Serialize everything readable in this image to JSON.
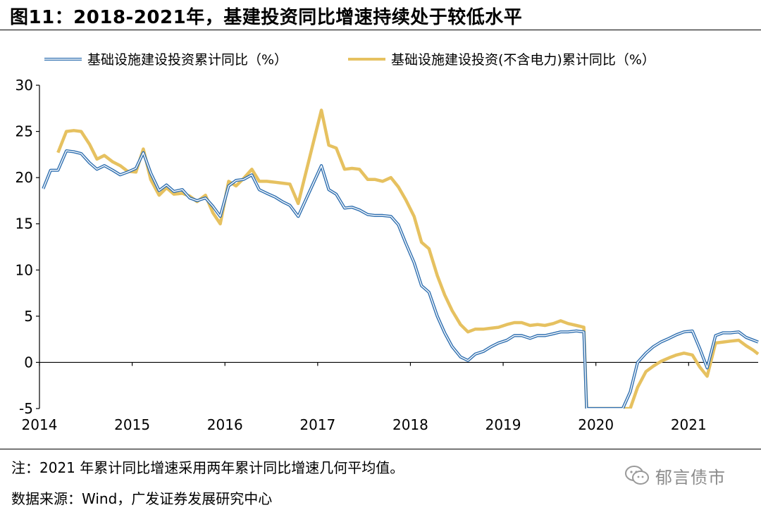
{
  "figure": {
    "title": "图11：2018-2021年，基建投资同比增速持续处于较低水平",
    "note": "注：2021 年累计同比增速采用两年累计同比增速几何平均值。",
    "source": "数据来源：Wind，广发证券发展研究中心",
    "watermark": "郁言债市"
  },
  "chart_data": {
    "type": "line",
    "title": "",
    "xlabel": "",
    "ylabel": "",
    "ylim": [
      -5,
      30
    ],
    "yticks": [
      -5,
      0,
      5,
      10,
      15,
      20,
      25,
      30
    ],
    "xlim": [
      2014,
      2021.75
    ],
    "xticks": [
      "2014",
      "2015",
      "2016",
      "2017",
      "2018",
      "2019",
      "2020",
      "2021"
    ],
    "grid": false,
    "legend_position": "top",
    "series": [
      {
        "name": "基础设施建设投资累计同比（%）",
        "color": "#2f6fb0",
        "points": [
          [
            2014.04,
            18.8
          ],
          [
            2014.12,
            20.8
          ],
          [
            2014.2,
            20.8
          ],
          [
            2014.29,
            22.9
          ],
          [
            2014.37,
            22.8
          ],
          [
            2014.45,
            22.6
          ],
          [
            2014.54,
            21.6
          ],
          [
            2014.62,
            20.9
          ],
          [
            2014.7,
            21.3
          ],
          [
            2014.79,
            20.8
          ],
          [
            2014.87,
            20.3
          ],
          [
            2014.95,
            20.6
          ],
          [
            2015.04,
            21.0
          ],
          [
            2015.12,
            22.7
          ],
          [
            2015.2,
            20.5
          ],
          [
            2015.29,
            18.6
          ],
          [
            2015.37,
            19.2
          ],
          [
            2015.45,
            18.5
          ],
          [
            2015.54,
            18.7
          ],
          [
            2015.62,
            17.8
          ],
          [
            2015.7,
            17.5
          ],
          [
            2015.79,
            17.8
          ],
          [
            2015.87,
            16.9
          ],
          [
            2015.95,
            15.8
          ],
          [
            2016.04,
            19.1
          ],
          [
            2016.12,
            19.7
          ],
          [
            2016.2,
            19.8
          ],
          [
            2016.29,
            20.3
          ],
          [
            2016.37,
            18.7
          ],
          [
            2016.45,
            18.3
          ],
          [
            2016.54,
            17.9
          ],
          [
            2016.62,
            17.4
          ],
          [
            2016.7,
            17.0
          ],
          [
            2016.79,
            15.8
          ],
          [
            2017.04,
            21.3
          ],
          [
            2017.12,
            18.7
          ],
          [
            2017.2,
            18.2
          ],
          [
            2017.29,
            16.7
          ],
          [
            2017.37,
            16.8
          ],
          [
            2017.45,
            16.5
          ],
          [
            2017.54,
            16.0
          ],
          [
            2017.62,
            15.9
          ],
          [
            2017.7,
            15.9
          ],
          [
            2017.79,
            15.8
          ],
          [
            2017.87,
            14.9
          ],
          [
            2017.95,
            12.9
          ],
          [
            2018.04,
            10.8
          ],
          [
            2018.12,
            8.3
          ],
          [
            2018.2,
            7.6
          ],
          [
            2018.29,
            5.0
          ],
          [
            2018.37,
            3.2
          ],
          [
            2018.45,
            1.7
          ],
          [
            2018.54,
            0.6
          ],
          [
            2018.62,
            0.2
          ],
          [
            2018.7,
            0.9
          ],
          [
            2018.79,
            1.2
          ],
          [
            2018.87,
            1.7
          ],
          [
            2018.95,
            2.1
          ],
          [
            2019.04,
            2.4
          ],
          [
            2019.12,
            2.9
          ],
          [
            2019.2,
            2.9
          ],
          [
            2019.29,
            2.6
          ],
          [
            2019.37,
            2.9
          ],
          [
            2019.45,
            2.9
          ],
          [
            2019.54,
            3.1
          ],
          [
            2019.62,
            3.3
          ],
          [
            2019.7,
            3.3
          ],
          [
            2019.79,
            3.4
          ],
          [
            2019.87,
            3.3
          ],
          [
            2019.9,
            -5
          ],
          [
            2020.29,
            -5
          ],
          [
            2020.37,
            -3.2
          ],
          [
            2020.45,
            0.0
          ],
          [
            2020.54,
            1.0
          ],
          [
            2020.62,
            1.7
          ],
          [
            2020.7,
            2.2
          ],
          [
            2020.79,
            2.6
          ],
          [
            2020.87,
            3.0
          ],
          [
            2020.95,
            3.3
          ],
          [
            2021.04,
            3.4
          ],
          [
            2021.12,
            1.5
          ],
          [
            2021.2,
            -0.6
          ],
          [
            2021.29,
            2.9
          ],
          [
            2021.37,
            3.2
          ],
          [
            2021.45,
            3.2
          ],
          [
            2021.54,
            3.3
          ],
          [
            2021.62,
            2.7
          ],
          [
            2021.7,
            2.4
          ],
          [
            2021.75,
            2.2
          ]
        ]
      },
      {
        "name": "基础设施建设投资(不含电力)累计同比（%）",
        "color": "#e6c160",
        "points": [
          [
            2014.2,
            22.7
          ],
          [
            2014.29,
            25.0
          ],
          [
            2014.37,
            25.1
          ],
          [
            2014.45,
            25.0
          ],
          [
            2014.54,
            23.6
          ],
          [
            2014.62,
            22.0
          ],
          [
            2014.7,
            22.4
          ],
          [
            2014.79,
            21.7
          ],
          [
            2014.87,
            21.3
          ],
          [
            2014.95,
            20.7
          ],
          [
            2015.04,
            20.6
          ],
          [
            2015.12,
            23.1
          ],
          [
            2015.2,
            19.8
          ],
          [
            2015.29,
            18.1
          ],
          [
            2015.37,
            18.9
          ],
          [
            2015.45,
            18.2
          ],
          [
            2015.54,
            18.3
          ],
          [
            2015.62,
            18.0
          ],
          [
            2015.7,
            17.4
          ],
          [
            2015.79,
            18.1
          ],
          [
            2015.87,
            16.2
          ],
          [
            2015.95,
            15.0
          ],
          [
            2016.04,
            19.6
          ],
          [
            2016.12,
            19.1
          ],
          [
            2016.2,
            19.9
          ],
          [
            2016.29,
            20.9
          ],
          [
            2016.37,
            19.6
          ],
          [
            2016.45,
            19.6
          ],
          [
            2016.54,
            19.5
          ],
          [
            2016.62,
            19.4
          ],
          [
            2016.7,
            19.3
          ],
          [
            2016.79,
            17.2
          ],
          [
            2017.04,
            27.3
          ],
          [
            2017.12,
            23.5
          ],
          [
            2017.2,
            23.2
          ],
          [
            2017.29,
            20.9
          ],
          [
            2017.37,
            21.0
          ],
          [
            2017.45,
            20.9
          ],
          [
            2017.54,
            19.8
          ],
          [
            2017.62,
            19.8
          ],
          [
            2017.7,
            19.6
          ],
          [
            2017.79,
            20.0
          ],
          [
            2017.87,
            19.0
          ],
          [
            2017.95,
            17.6
          ],
          [
            2018.04,
            15.8
          ],
          [
            2018.12,
            13.0
          ],
          [
            2018.2,
            12.3
          ],
          [
            2018.29,
            9.4
          ],
          [
            2018.37,
            7.3
          ],
          [
            2018.45,
            5.6
          ],
          [
            2018.54,
            4.1
          ],
          [
            2018.62,
            3.3
          ],
          [
            2018.7,
            3.6
          ],
          [
            2018.79,
            3.6
          ],
          [
            2018.87,
            3.7
          ],
          [
            2018.95,
            3.8
          ],
          [
            2019.04,
            4.1
          ],
          [
            2019.12,
            4.3
          ],
          [
            2019.2,
            4.3
          ],
          [
            2019.29,
            4.0
          ],
          [
            2019.37,
            4.1
          ],
          [
            2019.45,
            4.0
          ],
          [
            2019.54,
            4.2
          ],
          [
            2019.62,
            4.5
          ],
          [
            2019.7,
            4.2
          ],
          [
            2019.79,
            4.0
          ],
          [
            2019.87,
            3.8
          ],
          [
            2019.9,
            -5
          ],
          [
            2020.37,
            -5
          ],
          [
            2020.45,
            -2.7
          ],
          [
            2020.54,
            -1.0
          ],
          [
            2020.62,
            -0.4
          ],
          [
            2020.7,
            0.1
          ],
          [
            2020.79,
            0.5
          ],
          [
            2020.87,
            0.8
          ],
          [
            2020.95,
            1.0
          ],
          [
            2021.04,
            0.8
          ],
          [
            2021.12,
            -0.5
          ],
          [
            2021.2,
            -1.5
          ],
          [
            2021.29,
            2.1
          ],
          [
            2021.37,
            2.2
          ],
          [
            2021.45,
            2.3
          ],
          [
            2021.54,
            2.4
          ],
          [
            2021.62,
            1.8
          ],
          [
            2021.7,
            1.3
          ],
          [
            2021.75,
            0.9
          ]
        ]
      }
    ]
  }
}
